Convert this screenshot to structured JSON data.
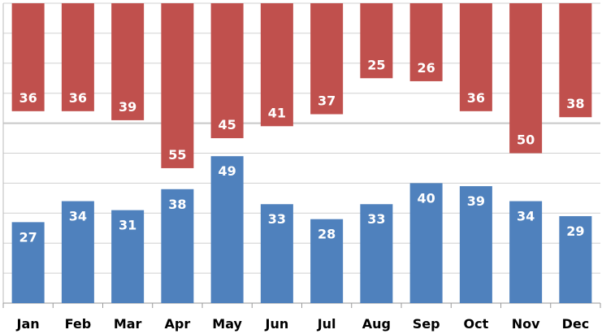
{
  "chart_data": {
    "type": "bar",
    "categories": [
      "Jan",
      "Feb",
      "Mar",
      "Apr",
      "May",
      "Jun",
      "Jul",
      "Aug",
      "Sep",
      "Oct",
      "Nov",
      "Dec"
    ],
    "series": [
      {
        "values": [
          27,
          34,
          31,
          38,
          49,
          33,
          28,
          33,
          40,
          39,
          34,
          29
        ],
        "color": "#4f81bd",
        "orientation": "from-bottom"
      },
      {
        "values": [
          36,
          36,
          39,
          55,
          45,
          41,
          37,
          25,
          26,
          36,
          50,
          38
        ],
        "color": "#c0504d",
        "orientation": "from-top"
      }
    ],
    "ylim": [
      0,
      100
    ],
    "grid": true,
    "data_labels": true,
    "title": "",
    "xlabel": "",
    "ylabel": ""
  }
}
